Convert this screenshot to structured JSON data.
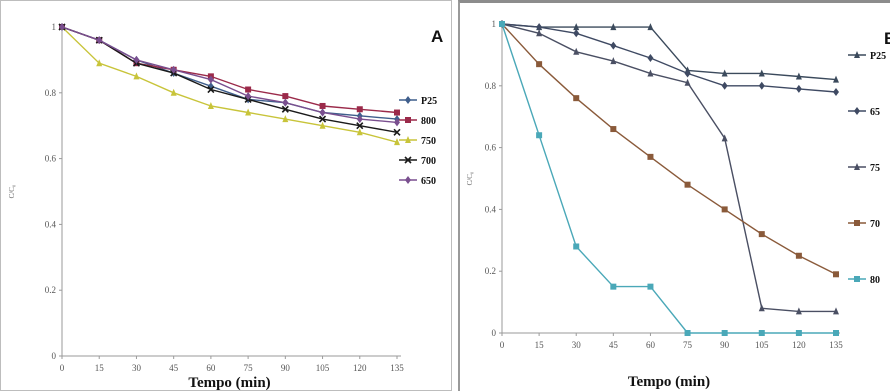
{
  "chart_data": [
    {
      "type": "line",
      "panel_letter": "A",
      "xlabel": "Tempo (min)",
      "ylabel": "C/C₀",
      "x": [
        0,
        15,
        30,
        45,
        60,
        75,
        90,
        105,
        120,
        135
      ],
      "x_ticks": [
        "0",
        "15",
        "30",
        "45",
        "60",
        "75",
        "90",
        "105",
        "120",
        "135"
      ],
      "ylim": [
        0,
        1
      ],
      "y_ticks": [
        "0",
        "0.2",
        "0.4",
        "0.6",
        "0.8",
        "1"
      ],
      "legend_position": "right",
      "series": [
        {
          "name": "P25",
          "color": "#3f5e8c",
          "marker": "diamond",
          "values": [
            1.0,
            0.96,
            0.9,
            0.86,
            0.82,
            0.78,
            0.77,
            0.74,
            0.73,
            0.72
          ]
        },
        {
          "name": "800",
          "color": "#9b2a4a",
          "marker": "square",
          "values": [
            1.0,
            0.96,
            0.89,
            0.87,
            0.85,
            0.81,
            0.79,
            0.76,
            0.75,
            0.74
          ]
        },
        {
          "name": "750",
          "color": "#c8c43a",
          "marker": "triangle",
          "values": [
            1.0,
            0.89,
            0.85,
            0.8,
            0.76,
            0.74,
            0.72,
            0.7,
            0.68,
            0.65
          ]
        },
        {
          "name": "700",
          "color": "#1a1a1a",
          "marker": "x",
          "values": [
            1.0,
            0.96,
            0.89,
            0.86,
            0.81,
            0.78,
            0.75,
            0.72,
            0.7,
            0.68
          ]
        },
        {
          "name": "650",
          "color": "#7a4f8f",
          "marker": "diamond",
          "values": [
            1.0,
            0.96,
            0.9,
            0.87,
            0.84,
            0.79,
            0.77,
            0.74,
            0.72,
            0.71
          ]
        }
      ]
    },
    {
      "type": "line",
      "panel_letter": "B",
      "xlabel": "Tempo (min)",
      "ylabel": "C/C₀",
      "x": [
        0,
        15,
        30,
        45,
        60,
        75,
        90,
        105,
        120,
        135
      ],
      "x_ticks": [
        "0",
        "15",
        "30",
        "45",
        "60",
        "75",
        "90",
        "105",
        "120",
        "135"
      ],
      "ylim": [
        0,
        1
      ],
      "y_ticks": [
        "0",
        "0.2",
        "0.4",
        "0.6",
        "0.8",
        "1"
      ],
      "legend_position": "right",
      "series": [
        {
          "name": "P25",
          "color": "#3b4a5c",
          "marker": "triangle",
          "values": [
            1.0,
            0.99,
            0.99,
            0.99,
            0.99,
            0.85,
            0.84,
            0.84,
            0.83,
            0.82
          ]
        },
        {
          "name": "65",
          "color": "#3f4a63",
          "marker": "diamond",
          "values": [
            1.0,
            0.99,
            0.97,
            0.93,
            0.89,
            0.84,
            0.8,
            0.8,
            0.79,
            0.78
          ]
        },
        {
          "name": "75",
          "color": "#4a4f63",
          "marker": "triangle",
          "values": [
            1.0,
            0.97,
            0.91,
            0.88,
            0.84,
            0.81,
            0.63,
            0.08,
            0.07,
            0.07
          ]
        },
        {
          "name": "70",
          "color": "#8a5a3a",
          "marker": "square",
          "values": [
            1.0,
            0.87,
            0.76,
            0.66,
            0.57,
            0.48,
            0.4,
            0.32,
            0.25,
            0.19
          ]
        },
        {
          "name": "80",
          "color": "#4aa8b8",
          "marker": "square",
          "values": [
            1.0,
            0.64,
            0.28,
            0.15,
            0.15,
            0.0,
            0.0,
            0.0,
            0.0,
            0.0
          ]
        }
      ]
    }
  ]
}
